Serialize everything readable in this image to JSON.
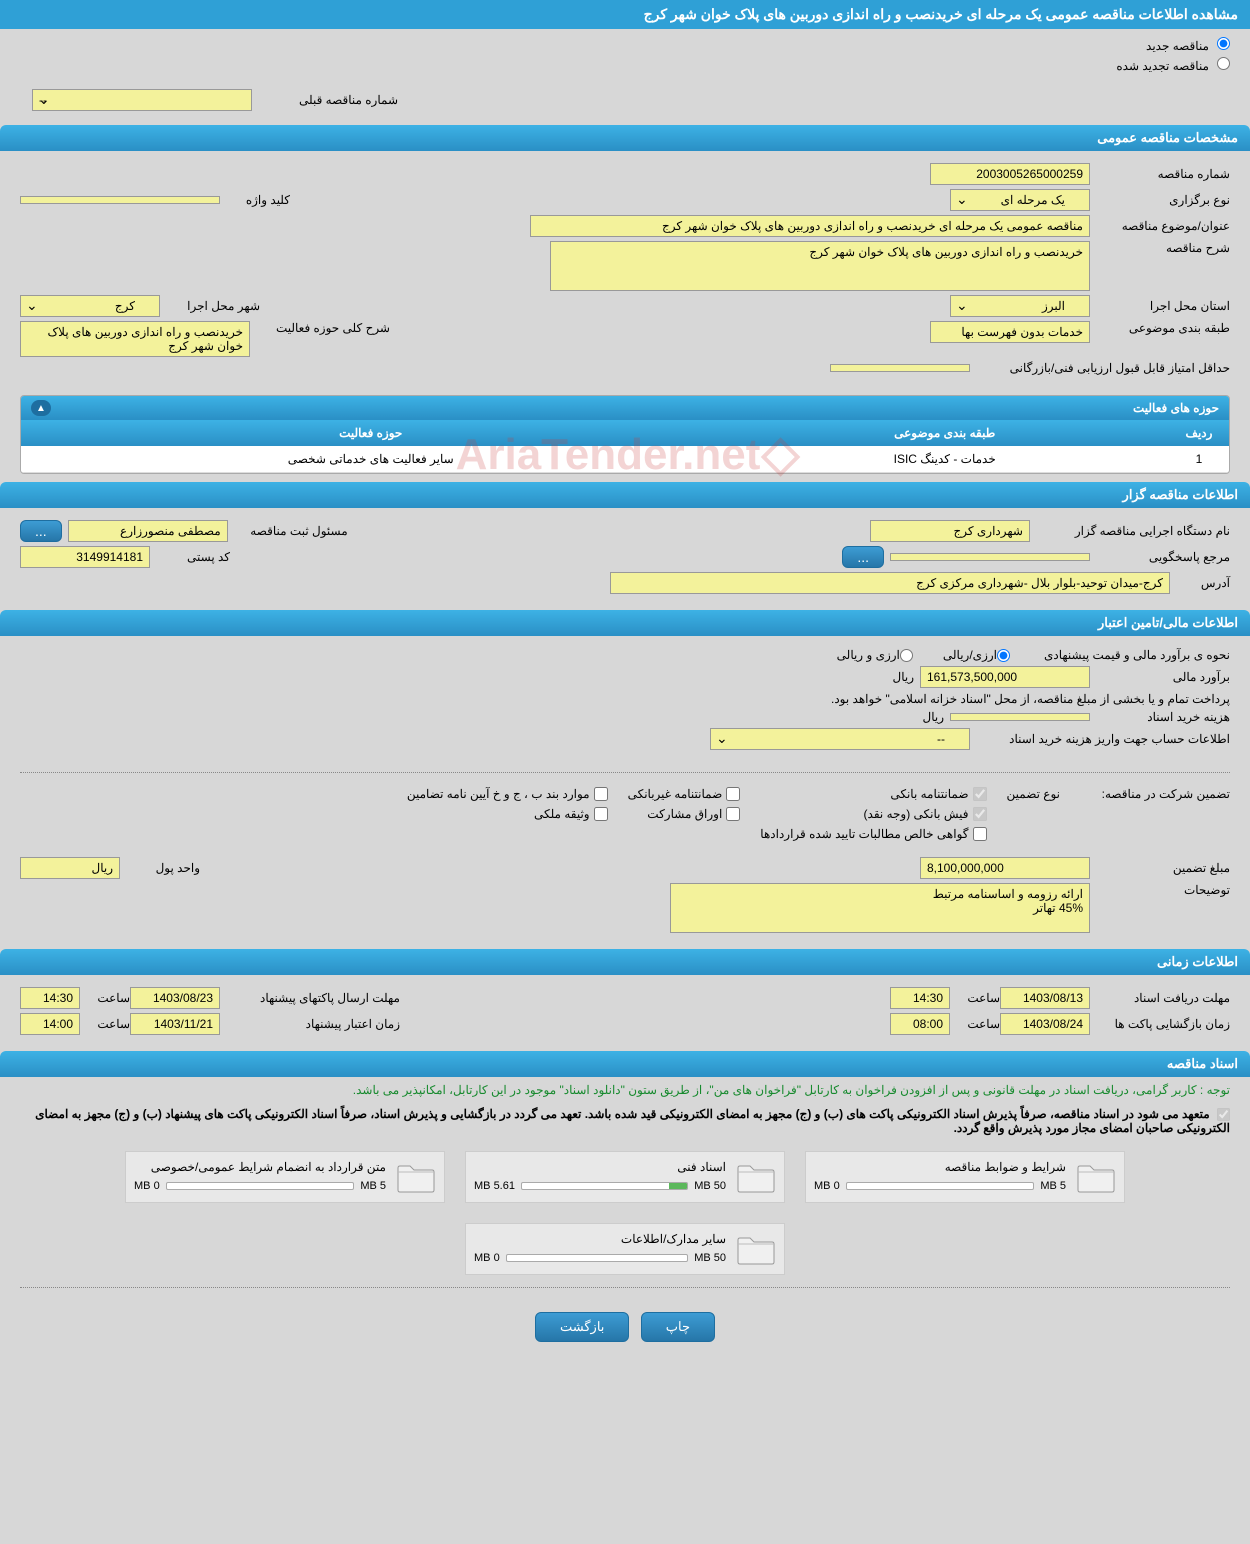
{
  "page_title": "مشاهده اطلاعات مناقصه عمومی یک مرحله ای خریدنصب و راه اندازی دوربین های پلاک خوان شهر کرج",
  "radios": {
    "new_label": "مناقصه جدید",
    "renew_label": "مناقصه تجدید شده",
    "prev_number_label": "شماره مناقصه قبلی",
    "prev_number_value": "--"
  },
  "general": {
    "header": "مشخصات مناقصه عمومی",
    "tender_number_label": "شماره مناقصه",
    "tender_number": "2003005265000259",
    "type_label": "نوع برگزاری",
    "type_value": "یک مرحله ای",
    "keyword_label": "کلید واژه",
    "keyword_value": "",
    "title_label": "عنوان/موضوع مناقصه",
    "title_value": "مناقصه عمومی یک مرحله ای خریدنصب و راه اندازی دوربین های پلاک خوان شهر کرج",
    "desc_label": "شرح مناقصه",
    "desc_value": "خریدنصب و راه اندازی دوربین های پلاک خوان شهر کرج",
    "province_label": "استان محل اجرا",
    "province_value": "البرز",
    "city_label": "شهر محل اجرا",
    "city_value": "کرج",
    "category_label": "طبقه بندی موضوعی",
    "category_value": "خدمات بدون فهرست بها",
    "activity_label": "شرح کلی حوزه فعالیت",
    "activity_value": "خریدنصب و راه اندازی دوربین های پلاک خوان شهر کرج",
    "min_score_label": "حداقل امتیاز قابل قبول ارزیابی فنی/بازرگانی",
    "min_score_value": ""
  },
  "activities_panel": {
    "header": "حوزه های فعالیت",
    "columns": [
      "ردیف",
      "طبقه بندی موضوعی",
      "حوزه فعالیت"
    ],
    "rows": [
      [
        "1",
        "خدمات - کدینگ ISIC",
        "سایر فعالیت های خدماتی شخصی"
      ]
    ]
  },
  "tenderer": {
    "header": "اطلاعات مناقصه گزار",
    "org_label": "نام دستگاه اجرایی مناقصه گزار",
    "org_value": "شهرداری کرج",
    "reg_label": "مسئول ثبت مناقصه",
    "reg_value": "مصطفی منصورزارع",
    "more_btn": "...",
    "resp_label": "مرجع پاسخگویی",
    "resp_value": "",
    "postal_label": "کد پستی",
    "postal_value": "3149914181",
    "address_label": "آدرس",
    "address_value": "کرج-میدان توحید-بلوار بلال -شهرداری مرکزی کرج"
  },
  "financial": {
    "header": "اطلاعات مالی/تامین اعتبار",
    "estimation_method_label": "نحوه ی برآورد مالی و قیمت پیشنهادی",
    "rial_label": "ارزی/ریالی",
    "currency_label": "ارزی و ریالی",
    "estimation_label": "برآورد مالی",
    "estimation_value": "161,573,500,000",
    "rial_unit": "ریال",
    "note": "پرداخت تمام و یا بخشی از مبلغ مناقصه، از محل \"اسناد خزانه اسلامی\" خواهد بود.",
    "cost_label": "هزینه خرید اسناد",
    "cost_value": "",
    "cost_unit": "ریال",
    "account_label": "اطلاعات حساب جهت واریز هزینه خرید اسناد",
    "account_value": "--",
    "guarantee_intro_label": "تضمین شرکت در مناقصه:",
    "guarantee_type_label": "نوع تضمین",
    "checkboxes": {
      "bank_guarantee": {
        "label": "ضمانتنامه بانکی",
        "checked": true
      },
      "non_bank_guarantee": {
        "label": "ضمانتنامه غیربانکی",
        "checked": false
      },
      "cases_b": {
        "label": "موارد بند ب ، ج و خ آیین نامه تضامین",
        "checked": false
      },
      "bank_receipt": {
        "label": "فیش بانکی (وجه نقد)",
        "checked": true
      },
      "participation": {
        "label": "اوراق مشارکت",
        "checked": false
      },
      "property": {
        "label": "وثیقه ملکی",
        "checked": false
      },
      "receivables": {
        "label": "گواهی خالص مطالبات تایید شده قراردادها",
        "checked": false
      }
    },
    "guarantee_amount_label": "مبلغ تضمین",
    "guarantee_amount_value": "8,100,000,000",
    "currency_unit_label": "واحد پول",
    "currency_unit_value": "ریال",
    "remarks_label": "توضیحات",
    "remarks_value": "ارائه رزومه و اساسنامه مرتبط\n45% تهاتر"
  },
  "timing": {
    "header": "اطلاعات زمانی",
    "receive_deadline_label": "مهلت دریافت اسناد",
    "receive_deadline_date": "1403/08/13",
    "receive_deadline_time": "14:30",
    "submit_deadline_label": "مهلت ارسال پاکتهای پیشنهاد",
    "submit_deadline_date": "1403/08/23",
    "submit_deadline_time": "14:30",
    "open_label": "زمان بازگشایی پاکت ها",
    "open_date": "1403/08/24",
    "open_time": "08:00",
    "validity_label": "زمان اعتبار پیشنهاد",
    "validity_date": "1403/11/21",
    "validity_time": "14:00",
    "time_label": "ساعت"
  },
  "documents": {
    "header": "اسناد مناقصه",
    "green_note": "توجه : کاربر گرامی، دریافت اسناد در مهلت قانونی و پس از افزودن فراخوان به کارتابل \"فراخوان های من\"، از طریق ستون \"دانلود اسناد\" موجود در این کارتابل، امکانپذیر می باشد.",
    "black_note": "متعهد می شود در اسناد مناقصه، صرفاً پذیرش اسناد الکترونیکی پاکت های (ب) و (ج) مجهز به امضای الکترونیکی قید شده باشد. تعهد می گردد در بازگشایی و پذیرش اسناد، صرفاً اسناد الکترونیکی پاکت های پیشنهاد (ب) و (ج) مجهز به امضای الکترونیکی صاحبان امضای مجاز مورد پذیرش واقع گردد.",
    "cards": [
      {
        "title": "شرایط و ضوابط مناقصه",
        "used": "0 MB",
        "max": "5 MB",
        "fill_pct": 0
      },
      {
        "title": "اسناد فنی",
        "used": "5.61 MB",
        "max": "50 MB",
        "fill_pct": 11
      },
      {
        "title": "متن قرارداد به انضمام شرایط عمومی/خصوصی",
        "used": "0 MB",
        "max": "5 MB",
        "fill_pct": 0
      },
      {
        "title": "سایر مدارک/اطلاعات",
        "used": "0 MB",
        "max": "50 MB",
        "fill_pct": 0
      }
    ]
  },
  "footer": {
    "print": "چاپ",
    "back": "بازگشت"
  },
  "watermark": "AriaTender.net",
  "colors": {
    "header_bg": "#2fa0d6",
    "field_bg": "#f3f29b",
    "page_bg": "#d7d7d7",
    "bar_fill": "#5cb85c"
  }
}
